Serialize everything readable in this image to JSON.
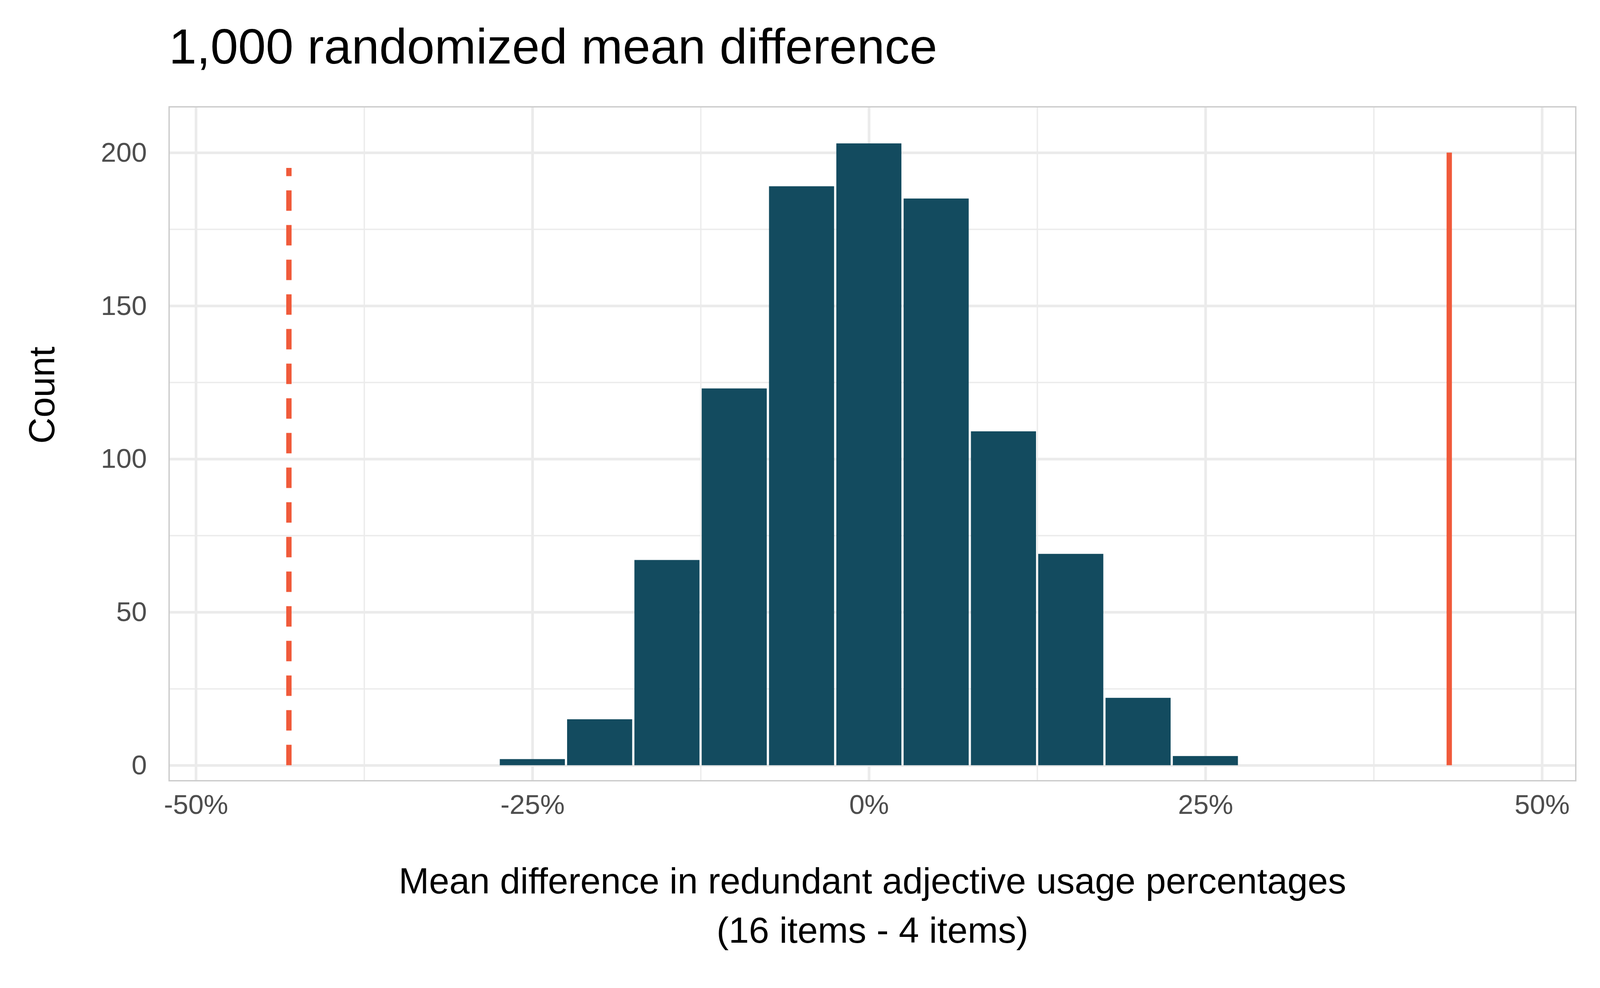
{
  "chart_data": {
    "type": "histogram",
    "title": "1,000 randomized mean difference",
    "xlabel": "Mean difference in redundant adjective usage percentages\n(16 items - 4 items)",
    "ylabel": "Count",
    "bins": [
      -27.5,
      -22.5,
      -17.5,
      -12.5,
      -7.5,
      -2.5,
      2.5,
      7.5,
      12.5,
      17.5,
      22.5,
      27.5
    ],
    "values": [
      2,
      15,
      67,
      123,
      189,
      203,
      185,
      109,
      69,
      22,
      3
    ],
    "color": "#134b5f",
    "reference_lines": [
      {
        "value": -43.1,
        "y_end": 195,
        "line_style": "dashed",
        "color": "#f05a3a"
      },
      {
        "value": 43.1,
        "y_end": 200,
        "line_style": "solid",
        "color": "#f05a3a"
      }
    ],
    "xlim": [
      -52,
      52.5
    ],
    "ylim": [
      -5,
      215
    ],
    "xticks": [
      {
        "value": -50,
        "label": "-50%"
      },
      {
        "value": -25,
        "label": "-25%"
      },
      {
        "value": 0,
        "label": "0%"
      },
      {
        "value": 25,
        "label": "25%"
      },
      {
        "value": 50,
        "label": "50%"
      }
    ],
    "yticks": [
      0,
      50,
      100,
      150,
      200
    ],
    "grid": true
  }
}
